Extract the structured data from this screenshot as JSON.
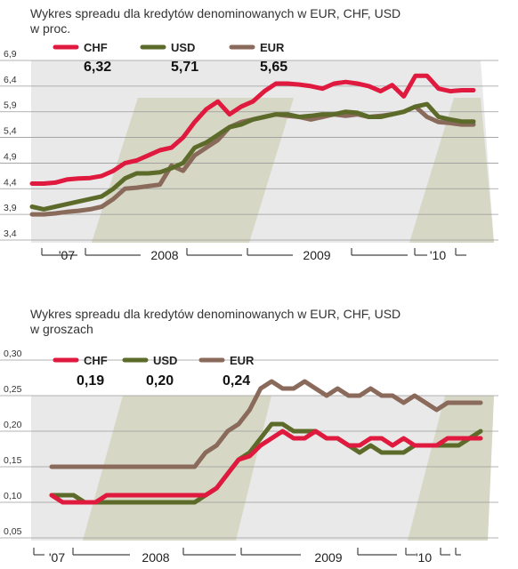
{
  "charts": [
    {
      "title_line1": "Wykres spreadu dla kredytów denominowanych w EUR, CHF, USD",
      "title_line2": "w proc.",
      "yticks": [
        "6,9",
        "6,4",
        "5,9",
        "5,4",
        "4,9",
        "4,4",
        "3,9",
        "3,4"
      ],
      "xticks": [
        "'07",
        "2008",
        "2009",
        "'10"
      ],
      "legend": [
        {
          "name": "CHF",
          "value": "6,32",
          "color": "#e0193f"
        },
        {
          "name": "USD",
          "value": "5,71",
          "color": "#5d6b2a"
        },
        {
          "name": "EUR",
          "value": "5,65",
          "color": "#8a6a5b"
        }
      ]
    },
    {
      "title_line1": "Wykres spreadu dla kredytów denominowanych w EUR, CHF, USD",
      "title_line2": "w groszach",
      "yticks": [
        "0,30",
        "0,25",
        "0,20",
        "0,15",
        "0,10",
        "0,05"
      ],
      "xticks": [
        "'07",
        "2008",
        "2009",
        "'10"
      ],
      "legend": [
        {
          "name": "CHF",
          "value": "0,19",
          "color": "#e0193f"
        },
        {
          "name": "USD",
          "value": "0,20",
          "color": "#5d6b2a"
        },
        {
          "name": "EUR",
          "value": "0,24",
          "color": "#8a6a5b"
        }
      ]
    }
  ],
  "chart_data": [
    {
      "type": "line",
      "title": "Wykres spreadu dla kredytów denominowanych w EUR, CHF, USD w proc.",
      "ylim": [
        3.4,
        6.9
      ],
      "x": [
        0,
        1,
        2,
        3,
        4,
        5,
        6,
        7,
        8,
        9,
        10,
        11,
        12,
        13,
        14,
        15,
        16,
        17,
        18,
        19,
        20,
        21,
        22,
        23,
        24,
        25,
        26,
        27,
        28,
        29,
        30,
        31,
        32,
        33,
        34,
        35,
        36,
        37,
        38
      ],
      "series": [
        {
          "name": "CHF",
          "values": [
            4.5,
            4.5,
            4.52,
            4.58,
            4.6,
            4.61,
            4.65,
            4.75,
            4.9,
            4.95,
            5.05,
            5.15,
            5.2,
            5.4,
            5.7,
            5.95,
            6.1,
            5.85,
            6.0,
            6.1,
            6.3,
            6.45,
            6.45,
            6.43,
            6.4,
            6.35,
            6.45,
            6.48,
            6.45,
            6.4,
            6.3,
            6.42,
            6.2,
            6.6,
            6.6,
            6.35,
            6.3,
            6.32,
            6.32
          ]
        },
        {
          "name": "USD",
          "values": [
            4.05,
            4.0,
            4.05,
            4.1,
            4.15,
            4.2,
            4.25,
            4.4,
            4.6,
            4.7,
            4.7,
            4.72,
            4.8,
            4.9,
            5.2,
            5.3,
            5.45,
            5.6,
            5.65,
            5.75,
            5.8,
            5.85,
            5.85,
            5.8,
            5.82,
            5.85,
            5.85,
            5.9,
            5.88,
            5.8,
            5.8,
            5.85,
            5.9,
            6.0,
            6.05,
            5.8,
            5.75,
            5.71,
            5.71
          ]
        },
        {
          "name": "EUR",
          "values": [
            3.9,
            3.9,
            3.92,
            3.95,
            3.97,
            4.0,
            4.05,
            4.2,
            4.4,
            4.42,
            4.45,
            4.48,
            4.85,
            4.75,
            5.05,
            5.2,
            5.35,
            5.6,
            5.7,
            5.75,
            5.8,
            5.85,
            5.82,
            5.8,
            5.75,
            5.8,
            5.85,
            5.82,
            5.85,
            5.8,
            5.82,
            5.85,
            5.9,
            6.0,
            5.8,
            5.7,
            5.68,
            5.65,
            5.65
          ]
        }
      ]
    },
    {
      "type": "line",
      "title": "Wykres spreadu dla kredytów denominowanych w EUR, CHF, USD w groszach",
      "ylim": [
        0.05,
        0.3
      ],
      "x": [
        0,
        1,
        2,
        3,
        4,
        5,
        6,
        7,
        8,
        9,
        10,
        11,
        12,
        13,
        14,
        15,
        16,
        17,
        18,
        19,
        20,
        21,
        22,
        23,
        24,
        25,
        26,
        27,
        28,
        29,
        30,
        31,
        32,
        33,
        34,
        35,
        36,
        37,
        38,
        39
      ],
      "series": [
        {
          "name": "CHF",
          "values": [
            0.11,
            0.1,
            0.1,
            0.1,
            0.1,
            0.11,
            0.11,
            0.11,
            0.11,
            0.11,
            0.11,
            0.11,
            0.11,
            0.11,
            0.11,
            0.12,
            0.14,
            0.16,
            0.165,
            0.18,
            0.19,
            0.2,
            0.19,
            0.19,
            0.2,
            0.19,
            0.19,
            0.18,
            0.18,
            0.19,
            0.19,
            0.18,
            0.19,
            0.18,
            0.18,
            0.18,
            0.19,
            0.19,
            0.19,
            0.19
          ]
        },
        {
          "name": "USD",
          "values": [
            0.11,
            0.11,
            0.11,
            0.1,
            0.1,
            0.1,
            0.1,
            0.1,
            0.1,
            0.1,
            0.1,
            0.1,
            0.1,
            0.1,
            0.11,
            0.12,
            0.14,
            0.16,
            0.17,
            0.19,
            0.21,
            0.21,
            0.2,
            0.2,
            0.2,
            0.19,
            0.19,
            0.18,
            0.17,
            0.18,
            0.17,
            0.17,
            0.17,
            0.18,
            0.18,
            0.18,
            0.18,
            0.18,
            0.19,
            0.2
          ]
        },
        {
          "name": "EUR",
          "values": [
            0.15,
            0.15,
            0.15,
            0.15,
            0.15,
            0.15,
            0.15,
            0.15,
            0.15,
            0.15,
            0.15,
            0.15,
            0.15,
            0.15,
            0.17,
            0.18,
            0.2,
            0.21,
            0.23,
            0.26,
            0.27,
            0.26,
            0.26,
            0.27,
            0.26,
            0.25,
            0.26,
            0.25,
            0.25,
            0.26,
            0.25,
            0.25,
            0.24,
            0.25,
            0.24,
            0.23,
            0.24,
            0.24,
            0.24,
            0.24
          ]
        }
      ]
    }
  ]
}
